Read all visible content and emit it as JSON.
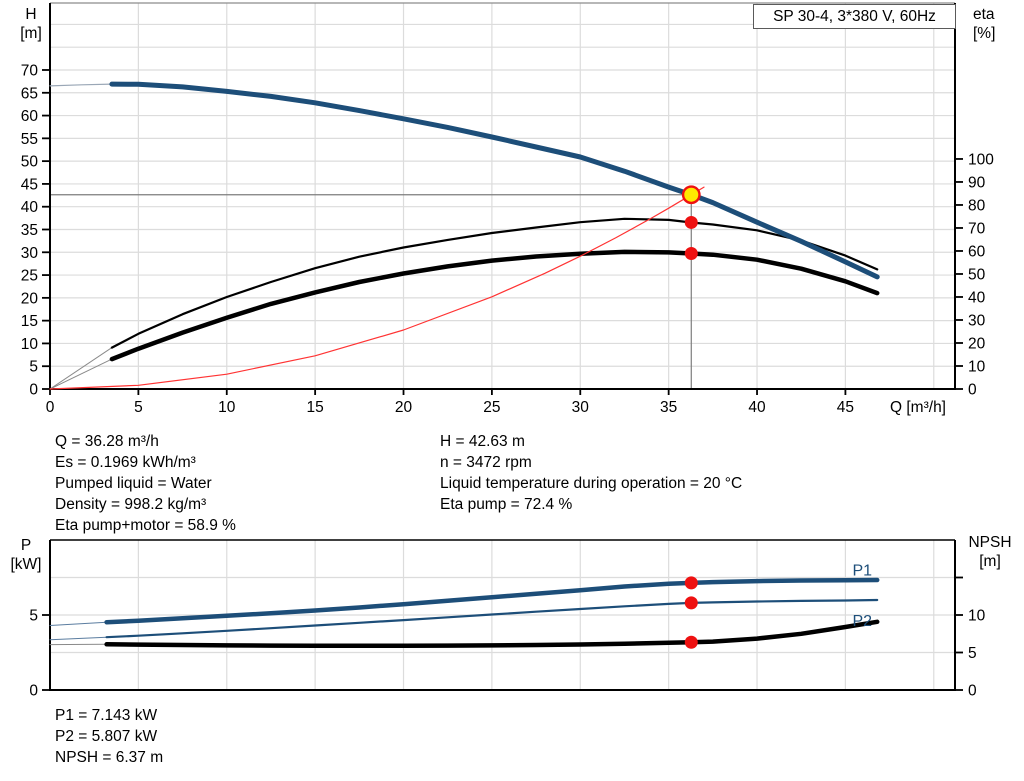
{
  "title_box": {
    "text": "SP 30-4, 3*380 V, 60Hz"
  },
  "results": {
    "top_left": [
      "Q = 36.28 m³/h",
      "Es = 0.1969 kWh/m³",
      "Pumped liquid = Water",
      "Density = 998.2 kg/m³",
      "Eta pump+motor = 58.9 %"
    ],
    "top_right": [
      "H = 42.63 m",
      "n = 3472 rpm",
      "Liquid temperature during operation = 20 °C",
      "Eta pump = 72.4 %"
    ],
    "bottom": [
      "P1 = 7.143 kW",
      "P2 = 5.807 kW",
      "NPSH = 6.37 m"
    ]
  },
  "colors": {
    "curve_blue": "#1d4e79",
    "curve_black": "#000000",
    "system_red": "#ff3333",
    "marker_red": "#ee1111",
    "duty_yellow": "#ffe900",
    "grid": "#dcdcdc",
    "duty_line_gray": "#7d7d7d",
    "frame_gray": "#8c8c8c"
  },
  "chart_data": [
    {
      "type": "line",
      "name": "hq-eta-chart",
      "title": "SP 30-4, 3*380 V, 60Hz",
      "x_axis": {
        "label": "Q [m³/h]",
        "min": 0,
        "max": 51.2,
        "ticks": [
          0,
          5,
          10,
          15,
          20,
          25,
          30,
          35,
          40,
          45
        ],
        "grid": [
          0,
          5,
          10,
          15,
          20,
          25,
          30,
          35,
          40,
          45,
          50
        ]
      },
      "left_axis": {
        "label": "H",
        "unit": "[m]",
        "min": 0,
        "max": 84.7,
        "ticks": [
          0,
          5,
          10,
          15,
          20,
          25,
          30,
          35,
          40,
          45,
          50,
          55,
          60,
          65,
          70
        ]
      },
      "right_axis": {
        "label": "eta",
        "unit": "[%]",
        "min": 0,
        "max": 167.8,
        "ticks": [
          0,
          10,
          20,
          30,
          40,
          50,
          60,
          70,
          80,
          90,
          100
        ]
      },
      "grid_h": [
        5,
        10,
        15,
        20,
        25,
        30,
        35,
        40,
        45,
        50,
        55,
        60,
        65,
        70,
        75,
        80
      ],
      "grid_h_axis": "left",
      "duty_point": {
        "Q": 36.28,
        "H": 42.63,
        "eta_pump": 72.4,
        "eta_pump_motor": 58.9
      },
      "ref_lines": [
        {
          "name": "duty-h-line",
          "axis": "left",
          "color": "#7d7d7d",
          "width": 1.2,
          "pts": [
            [
              0,
              42.63
            ],
            [
              36.28,
              42.63
            ]
          ]
        },
        {
          "name": "duty-v-line",
          "axis": "left",
          "color": "#7d7d7d",
          "width": 1.2,
          "pts": [
            [
              36.28,
              42.63
            ],
            [
              36.28,
              0
            ]
          ]
        }
      ],
      "series": [
        {
          "name": "head-lead",
          "axis": "left",
          "color": "#9aa7b6",
          "width": 1.2,
          "points": [
            [
              0,
              66.5
            ],
            [
              1.8,
              66.75
            ],
            [
              3.5,
              66.9
            ]
          ]
        },
        {
          "name": "eta-pump-lead",
          "axis": "right",
          "color": "#8a8a8a",
          "width": 1,
          "points": [
            [
              0,
              0
            ],
            [
              3.5,
              18
            ]
          ]
        },
        {
          "name": "eta-pump-motor-lead",
          "axis": "right",
          "color": "#8a8a8a",
          "width": 1,
          "points": [
            [
              0,
              0
            ],
            [
              3.5,
              13
            ]
          ]
        },
        {
          "name": "eta-pump",
          "axis": "right",
          "color": "#000000",
          "width": 2.2,
          "points": [
            [
              3.5,
              18
            ],
            [
              5,
              24
            ],
            [
              7.5,
              32.5
            ],
            [
              10,
              40
            ],
            [
              12.5,
              46.5
            ],
            [
              15,
              52.5
            ],
            [
              17.5,
              57.5
            ],
            [
              20,
              61.5
            ],
            [
              22.5,
              64.8
            ],
            [
              25,
              67.8
            ],
            [
              27.5,
              70.2
            ],
            [
              30,
              72.5
            ],
            [
              32.5,
              74
            ],
            [
              35,
              73.5
            ],
            [
              36.28,
              72.4
            ],
            [
              37.5,
              71.5
            ],
            [
              40,
              69
            ],
            [
              42.5,
              64.5
            ],
            [
              45,
              58
            ],
            [
              46.8,
              52
            ]
          ]
        },
        {
          "name": "eta-pump-motor",
          "axis": "right",
          "color": "#000000",
          "width": 4.5,
          "points": [
            [
              3.5,
              13
            ],
            [
              5,
              17.5
            ],
            [
              7.5,
              24.5
            ],
            [
              10,
              31
            ],
            [
              12.5,
              37
            ],
            [
              15,
              42
            ],
            [
              17.5,
              46.5
            ],
            [
              20,
              50.2
            ],
            [
              22.5,
              53.3
            ],
            [
              25,
              55.8
            ],
            [
              27.5,
              57.6
            ],
            [
              30,
              58.8
            ],
            [
              32.5,
              59.6
            ],
            [
              35,
              59.4
            ],
            [
              36.28,
              58.9
            ],
            [
              37.5,
              58.4
            ],
            [
              40,
              56.2
            ],
            [
              42.5,
              52.3
            ],
            [
              45,
              46.8
            ],
            [
              46.8,
              41.7
            ]
          ]
        },
        {
          "name": "head",
          "axis": "left",
          "color": "#1d4e79",
          "width": 5,
          "points": [
            [
              3.5,
              66.9
            ],
            [
              5,
              66.85
            ],
            [
              7.5,
              66.3
            ],
            [
              10,
              65.3
            ],
            [
              12.5,
              64.2
            ],
            [
              15,
              62.8
            ],
            [
              17.5,
              61.1
            ],
            [
              20,
              59.3
            ],
            [
              22.5,
              57.4
            ],
            [
              25,
              55.3
            ],
            [
              27.5,
              53.1
            ],
            [
              30,
              50.9
            ],
            [
              32.5,
              47.8
            ],
            [
              35,
              44.3
            ],
            [
              36.28,
              42.63
            ],
            [
              37.5,
              40.9
            ],
            [
              40,
              36.6
            ],
            [
              42.5,
              32.4
            ],
            [
              45,
              27.9
            ],
            [
              46.8,
              24.6
            ]
          ]
        },
        {
          "name": "system-curve",
          "axis": "left",
          "color": "#ff3333",
          "width": 1.2,
          "points": [
            [
              0,
              0
            ],
            [
              5,
              0.81
            ],
            [
              10,
              3.24
            ],
            [
              15,
              7.29
            ],
            [
              20,
              12.95
            ],
            [
              25,
              20.24
            ],
            [
              28,
              25.39
            ],
            [
              30,
              29.15
            ],
            [
              32,
              33.16
            ],
            [
              34,
              37.44
            ],
            [
              35,
              39.67
            ],
            [
              36.28,
              42.63
            ],
            [
              37,
              44.3
            ]
          ]
        }
      ],
      "markers": [
        {
          "name": "eta-pump-point",
          "q": 36.28,
          "v": 72.4,
          "axis": "right",
          "r": 6.5,
          "fill": "#ee1111"
        },
        {
          "name": "eta-pump-motor-point",
          "q": 36.28,
          "v": 58.9,
          "axis": "right",
          "r": 6.5,
          "fill": "#ee1111"
        },
        {
          "name": "duty-point",
          "q": 36.28,
          "v": 42.63,
          "axis": "left",
          "r": 8.2,
          "fill": "#ffe900",
          "stroke": "#ee1111",
          "stroke_width": 2.4
        }
      ]
    },
    {
      "type": "line",
      "name": "power-npsh-chart",
      "x_axis": {
        "label": "",
        "min": 0,
        "max": 51.2,
        "ticks": [],
        "grid": [
          0,
          5,
          10,
          15,
          20,
          25,
          30,
          35,
          40,
          45,
          50
        ]
      },
      "left_axis": {
        "label": "P",
        "unit": "[kW]",
        "min": 0,
        "max": 10,
        "ticks": [
          0,
          5
        ]
      },
      "right_axis": {
        "label": "NPSH",
        "unit": "[m]",
        "min": 0,
        "max": 20,
        "ticks": [
          0,
          5,
          10,
          15
        ],
        "tick_labels": [
          "0",
          "5",
          "10",
          ""
        ]
      },
      "grid_h": [
        5,
        10,
        15
      ],
      "grid_h_axis": "right",
      "duty_point": {
        "Q": 36.28,
        "P1": 7.143,
        "P2": 5.807,
        "NPSH": 6.37
      },
      "ref_lines": [],
      "series": [
        {
          "name": "p1-lead",
          "axis": "left",
          "color": "#5b7da0",
          "width": 1,
          "points": [
            [
              0,
              4.3
            ],
            [
              3.2,
              4.52
            ]
          ]
        },
        {
          "name": "p2-lead",
          "axis": "left",
          "color": "#5b7da0",
          "width": 1,
          "points": [
            [
              0,
              3.35
            ],
            [
              3.2,
              3.52
            ]
          ]
        },
        {
          "name": "npsh-lead",
          "axis": "right",
          "color": "#8a8a8a",
          "width": 1,
          "points": [
            [
              0,
              6.05
            ],
            [
              3.2,
              6.1
            ]
          ]
        },
        {
          "name": "p1",
          "axis": "left",
          "color": "#1d4e79",
          "width": 4.5,
          "points": [
            [
              3.2,
              4.52
            ],
            [
              5,
              4.62
            ],
            [
              7.5,
              4.78
            ],
            [
              10,
              4.95
            ],
            [
              12.5,
              5.12
            ],
            [
              15,
              5.3
            ],
            [
              17.5,
              5.5
            ],
            [
              20,
              5.72
            ],
            [
              22.5,
              5.95
            ],
            [
              25,
              6.18
            ],
            [
              27.5,
              6.42
            ],
            [
              30,
              6.65
            ],
            [
              32.5,
              6.9
            ],
            [
              35,
              7.08
            ],
            [
              36.28,
              7.143
            ],
            [
              37.5,
              7.19
            ],
            [
              40,
              7.26
            ],
            [
              42.5,
              7.3
            ],
            [
              45,
              7.32
            ],
            [
              46.8,
              7.33
            ]
          ]
        },
        {
          "name": "p2",
          "axis": "left",
          "color": "#1d4e79",
          "width": 2.2,
          "points": [
            [
              3.2,
              3.52
            ],
            [
              5,
              3.62
            ],
            [
              7.5,
              3.78
            ],
            [
              10,
              3.95
            ],
            [
              12.5,
              4.12
            ],
            [
              15,
              4.3
            ],
            [
              17.5,
              4.48
            ],
            [
              20,
              4.66
            ],
            [
              22.5,
              4.85
            ],
            [
              25,
              5.03
            ],
            [
              27.5,
              5.22
            ],
            [
              30,
              5.4
            ],
            [
              32.5,
              5.58
            ],
            [
              35,
              5.74
            ],
            [
              36.28,
              5.807
            ],
            [
              37.5,
              5.84
            ],
            [
              40,
              5.9
            ],
            [
              42.5,
              5.94
            ],
            [
              45,
              5.97
            ],
            [
              46.8,
              6.0
            ]
          ]
        },
        {
          "name": "npsh",
          "axis": "right",
          "color": "#000000",
          "width": 4.5,
          "points": [
            [
              3.2,
              6.1
            ],
            [
              5,
              6.05
            ],
            [
              7.5,
              6.0
            ],
            [
              10,
              5.95
            ],
            [
              12.5,
              5.92
            ],
            [
              15,
              5.9
            ],
            [
              17.5,
              5.9
            ],
            [
              20,
              5.9
            ],
            [
              22.5,
              5.92
            ],
            [
              25,
              5.95
            ],
            [
              27.5,
              6.0
            ],
            [
              30,
              6.07
            ],
            [
              32.5,
              6.17
            ],
            [
              35,
              6.3
            ],
            [
              36.28,
              6.37
            ],
            [
              37.5,
              6.45
            ],
            [
              40,
              6.85
            ],
            [
              42.5,
              7.5
            ],
            [
              45,
              8.4
            ],
            [
              46.8,
              9.1
            ]
          ]
        }
      ],
      "markers": [
        {
          "name": "p1-point",
          "q": 36.28,
          "v": 7.143,
          "axis": "left",
          "r": 6.5,
          "fill": "#ee1111"
        },
        {
          "name": "p2-point",
          "q": 36.28,
          "v": 5.807,
          "axis": "left",
          "r": 6.5,
          "fill": "#ee1111"
        },
        {
          "name": "npsh-point",
          "q": 36.28,
          "v": 6.37,
          "axis": "right",
          "r": 6.5,
          "fill": "#ee1111"
        }
      ],
      "inline_labels": [
        {
          "text": "P1",
          "q": 45.4,
          "v": 8.0,
          "axis": "left",
          "color": "#1d4e79"
        },
        {
          "text": "P2",
          "q": 45.4,
          "v": 4.62,
          "axis": "left",
          "color": "#1d4e79"
        }
      ]
    }
  ]
}
